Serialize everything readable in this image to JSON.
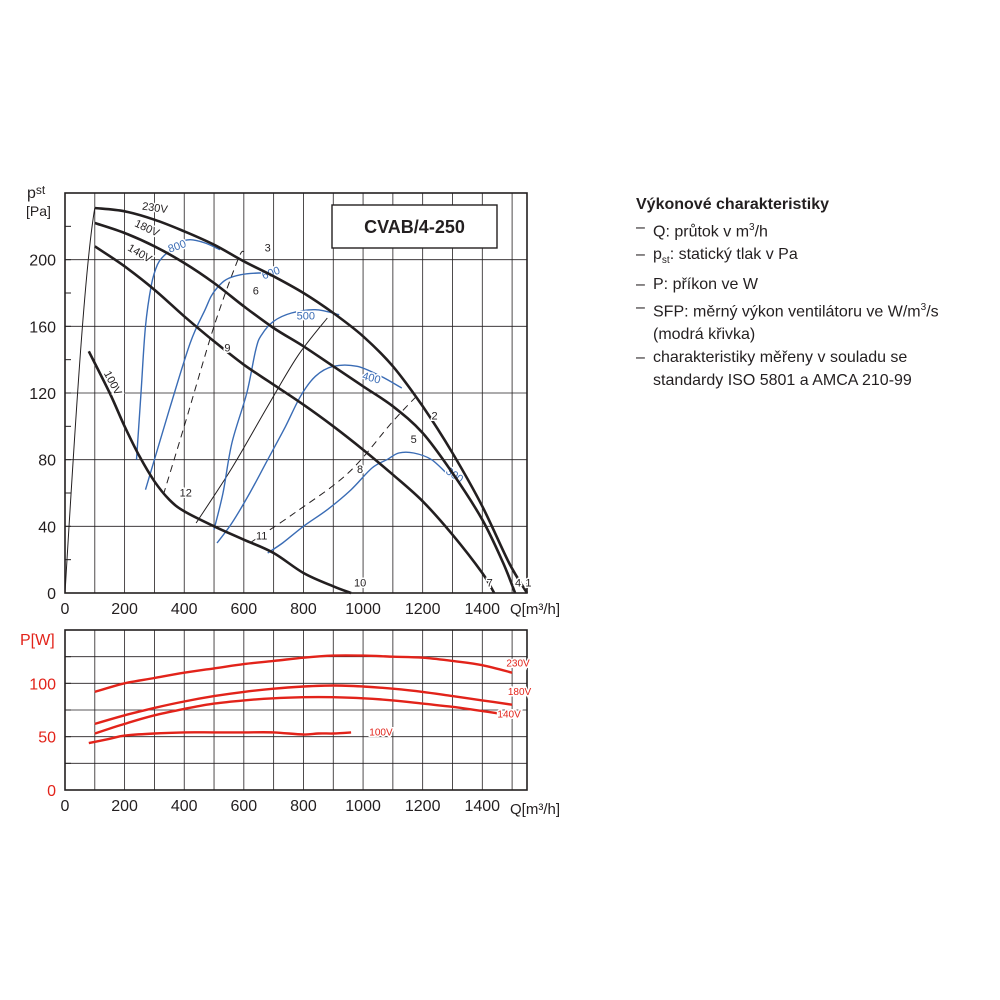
{
  "chart_data": [
    {
      "type": "line",
      "title": "CVAB/4-250",
      "xlabel": "Q[m³/h]",
      "ylabel": "pst [Pa]",
      "ylabel_main": "p",
      "ylabel_sub": "st",
      "ylabel_unit": "[Pa]",
      "xlim": [
        0,
        1550
      ],
      "ylim": [
        0,
        240
      ],
      "xticks": [
        0,
        200,
        400,
        600,
        800,
        1000,
        1200,
        1400
      ],
      "yticks": [
        0,
        40,
        80,
        120,
        160,
        200
      ],
      "grid": true,
      "colors": {
        "fan": "#231f20",
        "sfp": "#3a6cb5",
        "system": "#231f20"
      },
      "series": [
        {
          "name": "230V",
          "x": [
            100,
            200,
            300,
            400,
            500,
            600,
            700,
            800,
            900,
            1000,
            1100,
            1200,
            1300,
            1400,
            1490,
            1550
          ],
          "y": [
            231,
            229,
            224,
            217,
            209,
            199,
            190,
            180,
            168,
            154,
            136,
            112,
            84,
            52,
            18,
            0
          ]
        },
        {
          "name": "180V",
          "x": [
            100,
            200,
            300,
            400,
            500,
            600,
            700,
            800,
            900,
            1000,
            1100,
            1200,
            1300,
            1400,
            1470,
            1510
          ],
          "y": [
            222,
            216,
            208,
            198,
            186,
            172,
            159,
            148,
            136,
            124,
            112,
            96,
            72,
            44,
            18,
            0
          ]
        },
        {
          "name": "140V",
          "x": [
            100,
            200,
            300,
            400,
            500,
            600,
            700,
            800,
            900,
            1000,
            1100,
            1200,
            1300,
            1400,
            1440
          ],
          "y": [
            208,
            196,
            182,
            166,
            151,
            137,
            125,
            113,
            100,
            86,
            71,
            55,
            35,
            12,
            0
          ]
        },
        {
          "name": "100V",
          "x": [
            80,
            150,
            200,
            250,
            300,
            350,
            400,
            500,
            600,
            700,
            800,
            900,
            960
          ],
          "y": [
            145,
            120,
            100,
            82,
            67,
            56,
            49,
            40,
            32,
            24,
            12,
            4,
            0
          ]
        }
      ],
      "sfp_curves": [
        {
          "label": "800",
          "x": [
            240,
            255,
            270,
            290,
            310,
            330,
            350,
            380,
            420,
            470,
            520
          ],
          "y": [
            80,
            120,
            160,
            185,
            197,
            202,
            205,
            210,
            212,
            210,
            206
          ]
        },
        {
          "label": "600",
          "x": [
            270,
            300,
            350,
            420,
            470,
            490,
            510,
            540,
            590,
            650,
            720
          ],
          "y": [
            62,
            80,
            110,
            150,
            170,
            178,
            183,
            188,
            191,
            192,
            192
          ]
        },
        {
          "label": "500",
          "x": [
            500,
            530,
            560,
            610,
            640,
            660,
            700,
            760,
            840,
            920
          ],
          "y": [
            38,
            60,
            90,
            120,
            146,
            155,
            163,
            168,
            170,
            167
          ]
        },
        {
          "label": "400",
          "x": [
            510,
            560,
            620,
            680,
            740,
            790,
            840,
            900,
            980,
            1060,
            1130
          ],
          "y": [
            30,
            42,
            60,
            80,
            100,
            118,
            130,
            136,
            136,
            130,
            123
          ]
        },
        {
          "label": "300",
          "x": [
            680,
            730,
            800,
            880,
            960,
            1030,
            1080,
            1120,
            1170,
            1230,
            1290
          ],
          "y": [
            24,
            30,
            40,
            50,
            62,
            75,
            80,
            84,
            84,
            80,
            70
          ]
        }
      ],
      "system_lines": [
        {
          "dashed": true,
          "x": [
            330,
            400,
            500,
            580,
            600
          ],
          "y": [
            59,
            100,
            160,
            200,
            205
          ]
        },
        {
          "dashed": false,
          "x": [
            440,
            560,
            680,
            780,
            880
          ],
          "y": [
            42,
            75,
            112,
            142,
            165
          ]
        },
        {
          "dashed": true,
          "x": [
            620,
            770,
            950,
            1100,
            1190
          ],
          "y": [
            30,
            48,
            72,
            103,
            120
          ]
        }
      ],
      "point_labels": [
        {
          "text": "1",
          "x": 1555,
          "y": 4
        },
        {
          "text": "2",
          "x": 1240,
          "y": 104
        },
        {
          "text": "3",
          "x": 680,
          "y": 205
        },
        {
          "text": "4",
          "x": 1520,
          "y": 4
        },
        {
          "text": "5",
          "x": 1170,
          "y": 90
        },
        {
          "text": "6",
          "x": 640,
          "y": 179
        },
        {
          "text": "7",
          "x": 1425,
          "y": 4
        },
        {
          "text": "8",
          "x": 990,
          "y": 72
        },
        {
          "text": "9",
          "x": 545,
          "y": 145
        },
        {
          "text": "10",
          "x": 990,
          "y": 4
        },
        {
          "text": "11",
          "x": 660,
          "y": 32
        },
        {
          "text": "12",
          "x": 405,
          "y": 58
        }
      ]
    },
    {
      "type": "line",
      "xlabel": "Q[m³/h]",
      "ylabel": "P[W]",
      "xlim": [
        0,
        1550
      ],
      "ylim": [
        0,
        150
      ],
      "xticks": [
        0,
        200,
        400,
        600,
        800,
        1000,
        1200,
        1400
      ],
      "yticks": [
        0,
        50,
        100
      ],
      "grid": true,
      "color": "#e2231a",
      "series": [
        {
          "name": "230V",
          "x": [
            100,
            200,
            300,
            400,
            500,
            600,
            700,
            800,
            900,
            1000,
            1100,
            1200,
            1300,
            1400,
            1500
          ],
          "y": [
            92,
            100,
            105,
            110,
            114,
            118,
            121,
            124,
            126,
            126,
            125,
            124,
            121,
            117,
            110
          ]
        },
        {
          "name": "180V",
          "x": [
            100,
            200,
            300,
            400,
            500,
            600,
            700,
            800,
            900,
            1000,
            1100,
            1200,
            1300,
            1400,
            1500
          ],
          "y": [
            62,
            70,
            77,
            83,
            88,
            92,
            95,
            97,
            98,
            97,
            95,
            92,
            88,
            84,
            80
          ]
        },
        {
          "name": "140V",
          "x": [
            100,
            200,
            300,
            400,
            500,
            600,
            700,
            800,
            900,
            1000,
            1100,
            1200,
            1300,
            1400,
            1470
          ],
          "y": [
            53,
            62,
            70,
            76,
            81,
            84,
            86,
            87,
            87,
            86,
            84,
            81,
            78,
            74,
            71
          ]
        },
        {
          "name": "100V",
          "x": [
            80,
            150,
            200,
            300,
            400,
            500,
            600,
            700,
            800,
            850,
            900,
            960
          ],
          "y": [
            44,
            48,
            51,
            53,
            54,
            54,
            54,
            54,
            52,
            53,
            53,
            54
          ]
        }
      ]
    }
  ],
  "legend": {
    "heading": "Výkonové charakteristiky",
    "items": [
      {
        "pre": "Q: průtok v m",
        "sup": "3",
        "post": "/h"
      },
      {
        "pre": "p",
        "sub": "st",
        "post": ": statický tlak v Pa"
      },
      {
        "pre": "P: příkon ve W"
      },
      {
        "pre": "SFP: měrný výkon ventilátoru ve W/m",
        "sup": "3",
        "post": "/s",
        "cont": "(modrá křivka)"
      },
      {
        "pre": "charakteristiky měřeny v souladu se",
        "cont": "standardy ISO 5801 a AMCA 210-99"
      }
    ]
  }
}
